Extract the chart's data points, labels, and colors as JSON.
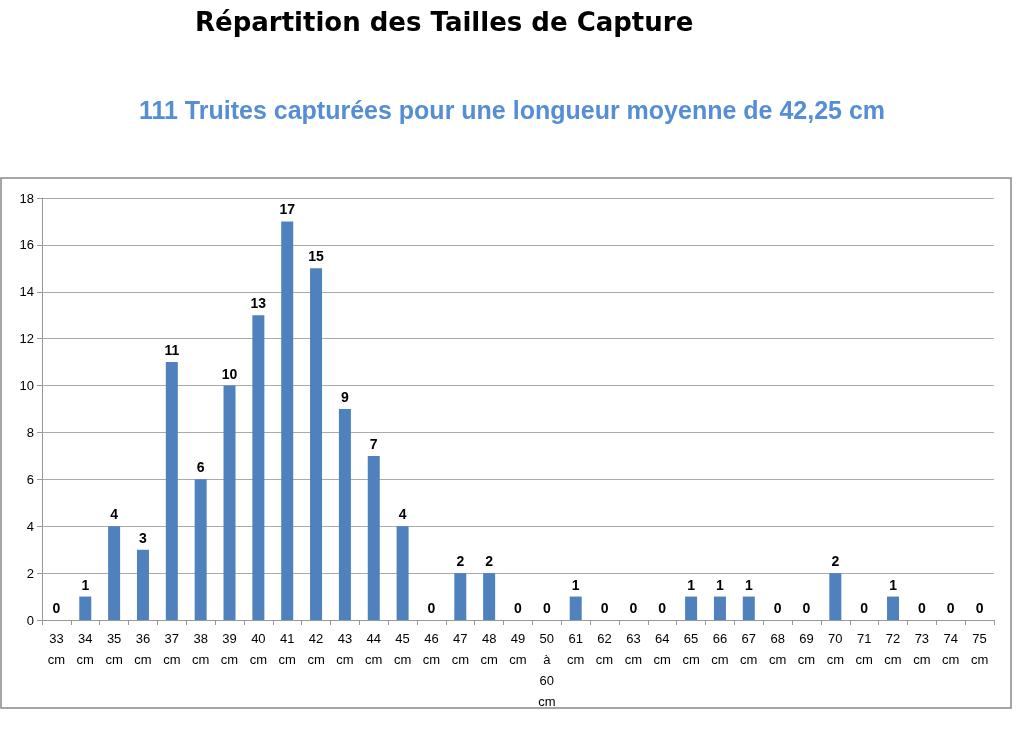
{
  "chart_data": {
    "type": "bar",
    "title": "Répartition des Tailles de Capture",
    "subtitle": "111 Truites capturées pour une longueur moyenne de 42,25 cm",
    "categories": [
      "33 cm",
      "34 cm",
      "35 cm",
      "36 cm",
      "37 cm",
      "38 cm",
      "39 cm",
      "40 cm",
      "41 cm",
      "42 cm",
      "43 cm",
      "44 cm",
      "45 cm",
      "46 cm",
      "47 cm",
      "48 cm",
      "49 cm",
      "50 à 60 cm",
      "61 cm",
      "62 cm",
      "63 cm",
      "64 cm",
      "65 cm",
      "66 cm",
      "67 cm",
      "68 cm",
      "69 cm",
      "70 cm",
      "71 cm",
      "72 cm",
      "73 cm",
      "74 cm",
      "75 cm"
    ],
    "values": [
      0,
      1,
      4,
      3,
      11,
      6,
      10,
      13,
      17,
      15,
      9,
      7,
      4,
      0,
      2,
      2,
      0,
      0,
      1,
      0,
      0,
      0,
      1,
      1,
      1,
      0,
      0,
      2,
      0,
      1,
      0,
      0,
      0
    ],
    "color": "#4f81bd",
    "ylim": [
      0,
      18
    ],
    "yticks": [
      0,
      2,
      4,
      6,
      8,
      10,
      12,
      14,
      16,
      18
    ],
    "grid": "y",
    "data_labels": true
  }
}
